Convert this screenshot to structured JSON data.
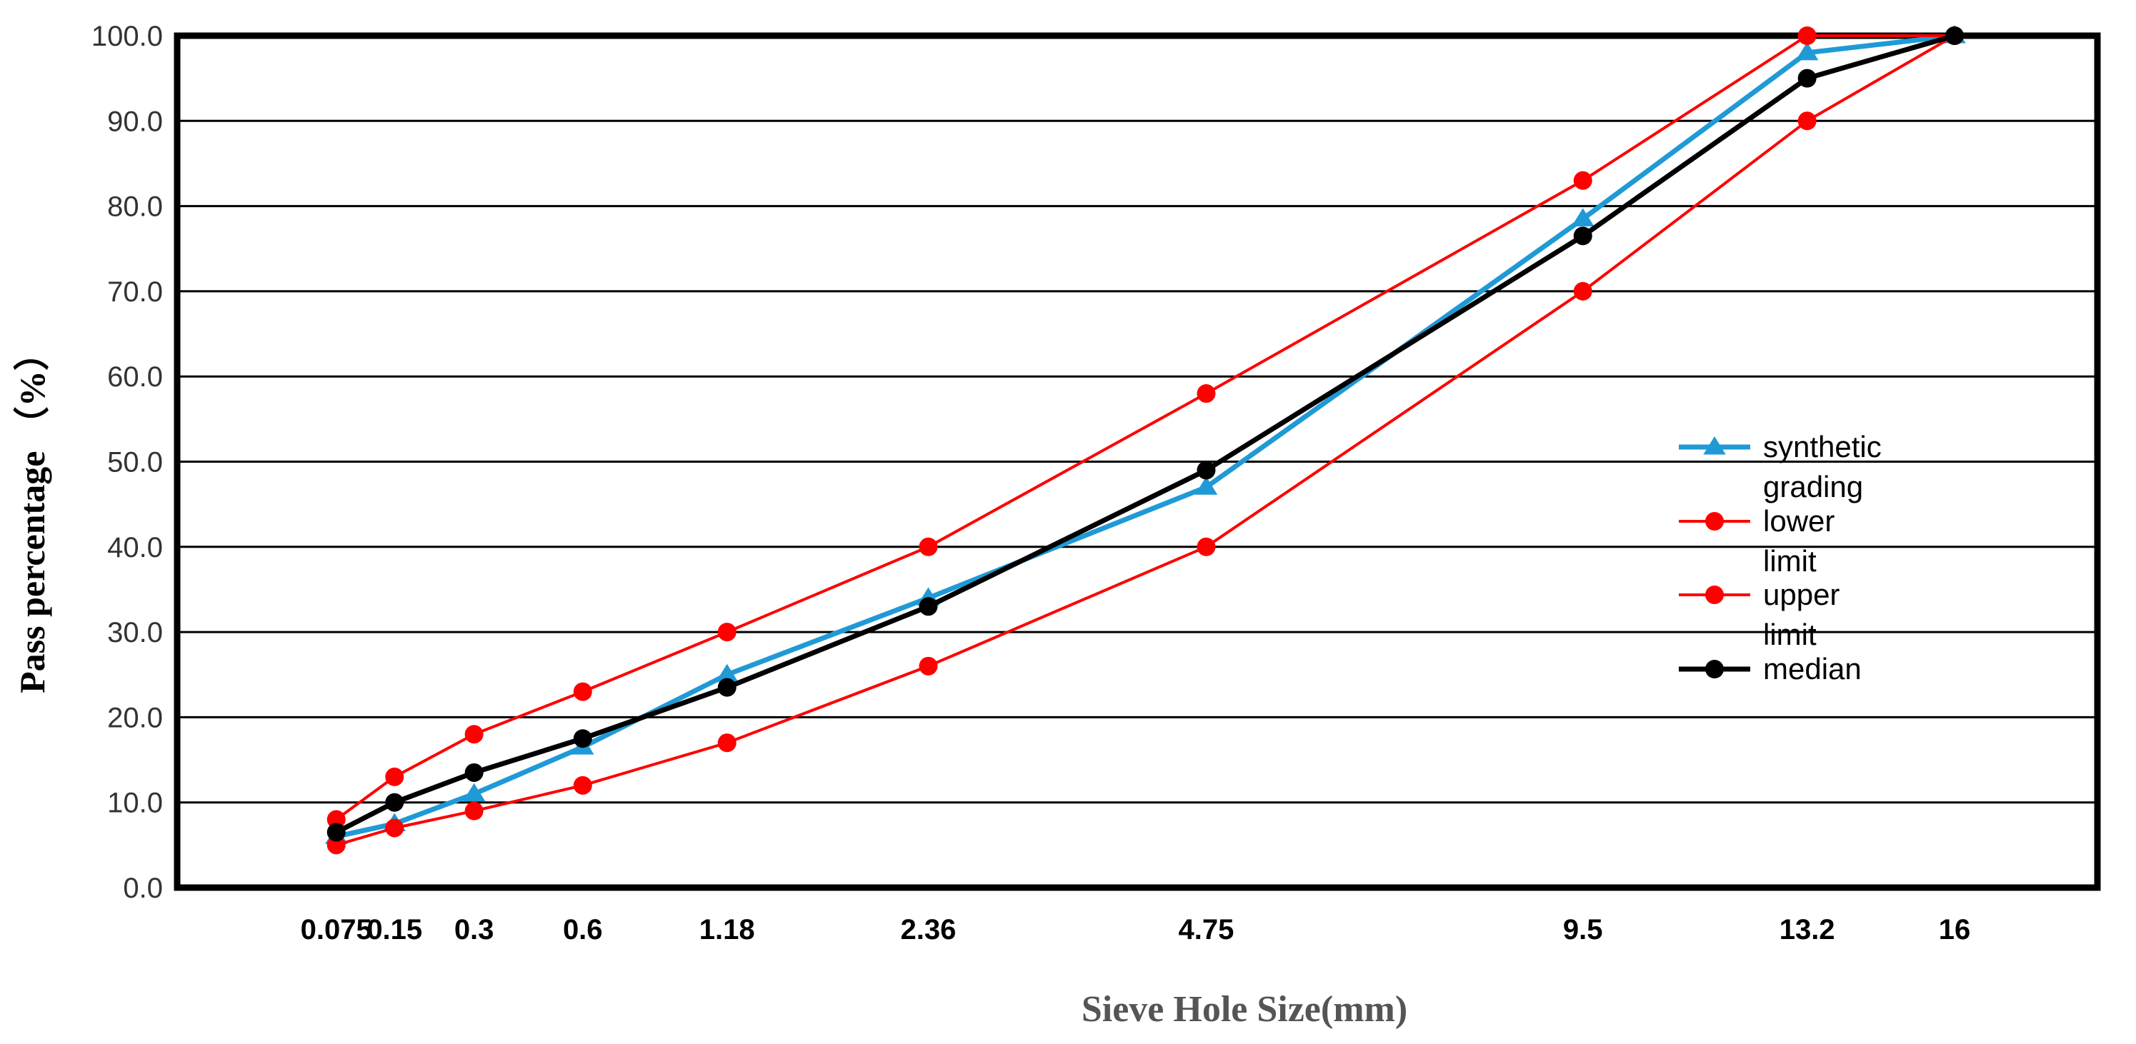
{
  "chart_data": {
    "type": "line",
    "title": "",
    "xlabel": "Sieve Hole Size(mm)",
    "ylabel": "Pass percentage （%）",
    "categories": [
      "0.075",
      "0.15",
      "0.3",
      "0.6",
      "1.18",
      "2.36",
      "4.75",
      "9.5",
      "13.2",
      "16"
    ],
    "x_positions": [
      0.075,
      0.15,
      0.3,
      0.6,
      1.18,
      2.36,
      4.75,
      9.5,
      13.2,
      16
    ],
    "x_scale": "gradation (size^0.45)",
    "xlim": [
      0.0,
      19.0
    ],
    "ylim": [
      0,
      100
    ],
    "yticks": [
      "0.0",
      "10.0",
      "20.0",
      "30.0",
      "40.0",
      "50.0",
      "60.0",
      "70.0",
      "80.0",
      "90.0",
      "100.0"
    ],
    "grid": true,
    "legend_position": "right",
    "series": [
      {
        "name": "synthetic grading",
        "legend_lines": [
          "synthetic",
          "grading"
        ],
        "color": "#1f9ad6",
        "marker": "triangle",
        "values": [
          6.0,
          7.5,
          11.0,
          16.5,
          25.0,
          34.0,
          47.0,
          78.5,
          98.0,
          100.0
        ]
      },
      {
        "name": "lower limit",
        "legend_lines": [
          "lower",
          "limit"
        ],
        "color": "#ff0000",
        "marker": "circle",
        "values": [
          5.0,
          7.0,
          9.0,
          12.0,
          17.0,
          26.0,
          40.0,
          70.0,
          90.0,
          100.0
        ]
      },
      {
        "name": "upper limit",
        "legend_lines": [
          "upper",
          "limit"
        ],
        "color": "#ff0000",
        "marker": "circle",
        "values": [
          8.0,
          13.0,
          18.0,
          23.0,
          30.0,
          40.0,
          58.0,
          83.0,
          100.0,
          100.0
        ]
      },
      {
        "name": "median",
        "legend_lines": [
          "median"
        ],
        "color": "#000000",
        "marker": "circle",
        "values": [
          6.5,
          10.0,
          13.5,
          17.5,
          23.5,
          33.0,
          49.0,
          76.5,
          95.0,
          100.0
        ]
      }
    ]
  }
}
